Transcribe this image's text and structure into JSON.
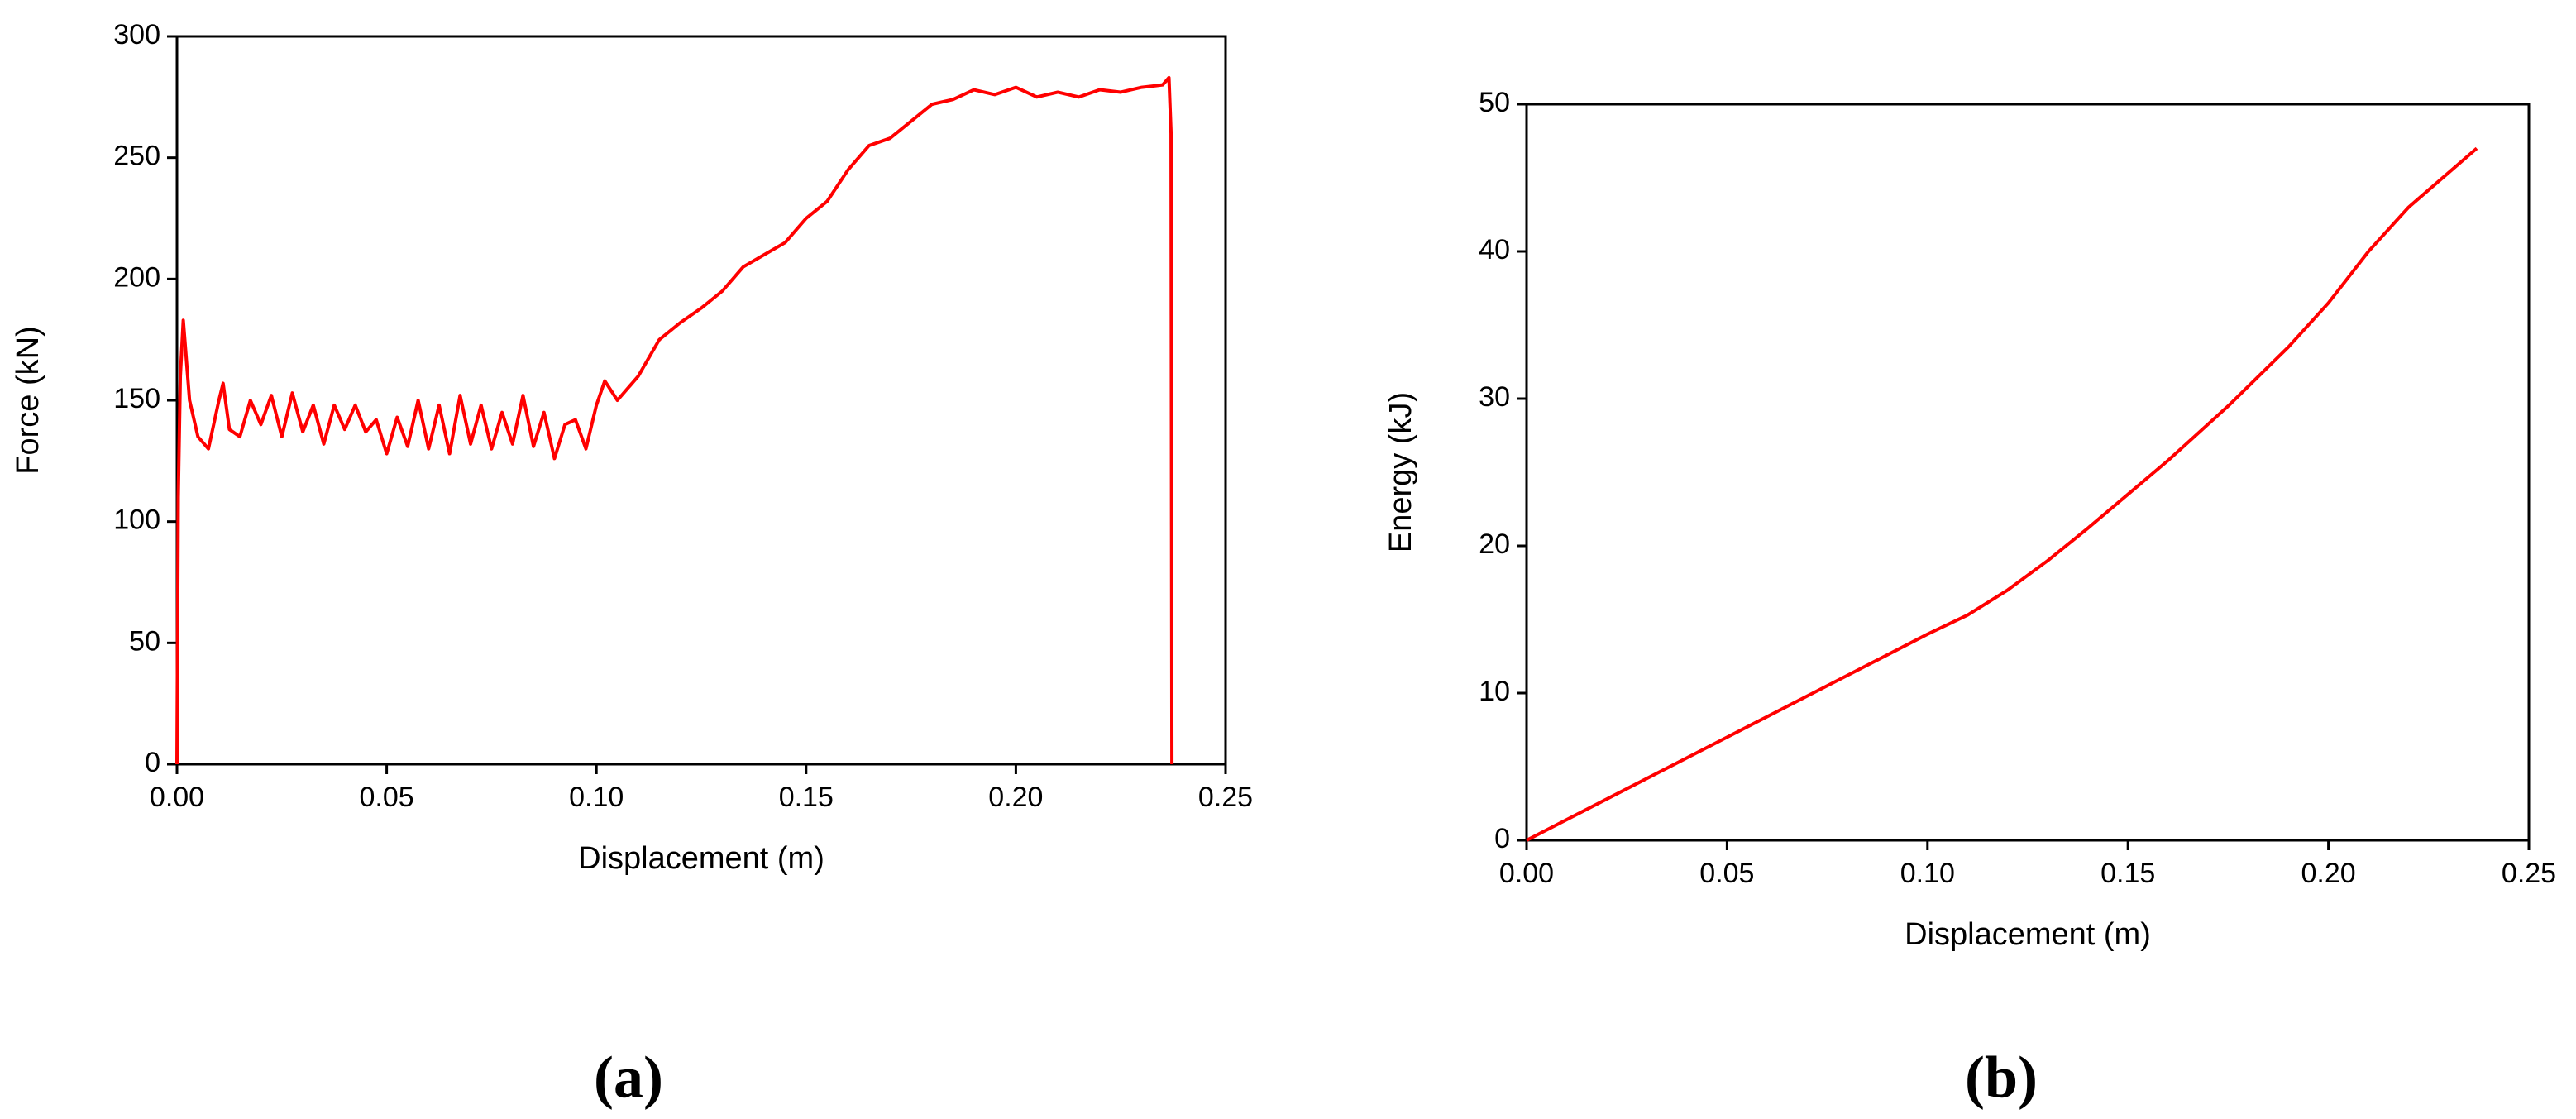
{
  "chart_data": [
    {
      "type": "line",
      "caption": "(a)",
      "x_label": "Displacement (m)",
      "y_label": "Force (kN)",
      "xlim": [
        0,
        0.25
      ],
      "ylim": [
        0,
        300
      ],
      "xticks": [
        {
          "value": 0,
          "label": "0.00"
        },
        {
          "value": 0.05,
          "label": "0.05"
        },
        {
          "value": 0.1,
          "label": "0.10"
        },
        {
          "value": 0.15,
          "label": "0.15"
        },
        {
          "value": 0.2,
          "label": "0.20"
        },
        {
          "value": 0.25,
          "label": "0.25"
        }
      ],
      "yticks": [
        0,
        50,
        100,
        150,
        200,
        250,
        300
      ],
      "series": [
        {
          "color": "#ff0000",
          "x": [
            0,
            0.0003,
            0.0008,
            0.0015,
            0.003,
            0.005,
            0.0075,
            0.01,
            0.011,
            0.0125,
            0.015,
            0.0175,
            0.02,
            0.0225,
            0.025,
            0.0275,
            0.03,
            0.0325,
            0.035,
            0.0375,
            0.04,
            0.0425,
            0.045,
            0.0475,
            0.05,
            0.0525,
            0.055,
            0.0575,
            0.06,
            0.0625,
            0.065,
            0.0675,
            0.07,
            0.0725,
            0.075,
            0.0775,
            0.08,
            0.0825,
            0.085,
            0.0875,
            0.09,
            0.0925,
            0.095,
            0.0975,
            0.1,
            0.102,
            0.105,
            0.11,
            0.115,
            0.12,
            0.125,
            0.13,
            0.135,
            0.14,
            0.145,
            0.15,
            0.155,
            0.16,
            0.165,
            0.17,
            0.175,
            0.18,
            0.185,
            0.19,
            0.195,
            0.2,
            0.205,
            0.21,
            0.215,
            0.22,
            0.225,
            0.23,
            0.235,
            0.2365,
            0.237,
            0.2372
          ],
          "values": [
            0,
            110,
            160,
            183,
            150,
            135,
            130,
            150,
            157,
            138,
            135,
            150,
            140,
            152,
            135,
            153,
            137,
            148,
            132,
            148,
            138,
            148,
            137,
            142,
            128,
            143,
            131,
            150,
            130,
            148,
            128,
            152,
            132,
            148,
            130,
            145,
            132,
            152,
            131,
            145,
            126,
            140,
            142,
            130,
            148,
            158,
            150,
            160,
            175,
            182,
            188,
            195,
            205,
            210,
            215,
            225,
            232,
            245,
            255,
            258,
            265,
            272,
            274,
            278,
            276,
            279,
            275,
            277,
            275,
            278,
            277,
            279,
            280,
            283,
            260,
            0
          ]
        }
      ]
    },
    {
      "type": "line",
      "caption": "(b)",
      "x_label": "Displacement (m)",
      "y_label": "Energy (kJ)",
      "xlim": [
        0,
        0.25
      ],
      "ylim": [
        0,
        50
      ],
      "xticks": [
        {
          "value": 0,
          "label": "0.00"
        },
        {
          "value": 0.05,
          "label": "0.05"
        },
        {
          "value": 0.1,
          "label": "0.10"
        },
        {
          "value": 0.15,
          "label": "0.15"
        },
        {
          "value": 0.2,
          "label": "0.20"
        },
        {
          "value": 0.25,
          "label": "0.25"
        }
      ],
      "yticks": [
        0,
        10,
        20,
        30,
        40,
        50
      ],
      "series": [
        {
          "color": "#ff0000",
          "x": [
            0,
            0.025,
            0.05,
            0.075,
            0.1,
            0.11,
            0.12,
            0.13,
            0.14,
            0.15,
            0.16,
            0.175,
            0.19,
            0.2,
            0.21,
            0.22,
            0.237
          ],
          "values": [
            0,
            3.5,
            7,
            10.5,
            14,
            15.3,
            17,
            19,
            21.2,
            23.5,
            25.8,
            29.5,
            33.5,
            36.5,
            40,
            43,
            47
          ]
        }
      ]
    }
  ]
}
